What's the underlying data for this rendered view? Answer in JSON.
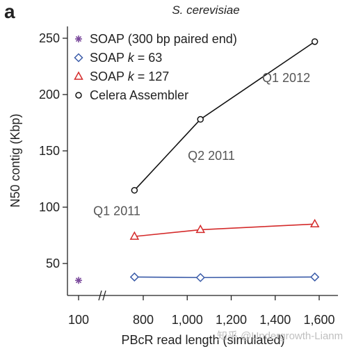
{
  "panel_letter": "a",
  "watermark": "知乎 @Undergrowth-Lianm",
  "colors": {
    "soap_300": "#7b4a9c",
    "soap_k63": "#3a5ba8",
    "soap_k127": "#d42a2a",
    "celera": "#111111",
    "annotation": "#555555"
  },
  "chart_data": {
    "type": "line",
    "title": "S. cerevisiae",
    "xlabel": "PBcR read length (simulated)",
    "ylabel": "N50 contig (Kbp)",
    "ylim": [
      25,
      260
    ],
    "xlim": [
      650,
      1650
    ],
    "x_break": true,
    "xticks": [
      {
        "value": 100,
        "label": "100",
        "broken_segment": true
      },
      {
        "value": 800,
        "label": "800"
      },
      {
        "value": 1000,
        "label": "1,000"
      },
      {
        "value": 1200,
        "label": "1,200"
      },
      {
        "value": 1400,
        "label": "1,400"
      },
      {
        "value": 1600,
        "label": "1,600"
      }
    ],
    "yticks": [
      {
        "value": 50,
        "label": "50"
      },
      {
        "value": 100,
        "label": "100"
      },
      {
        "value": 150,
        "label": "150"
      },
      {
        "value": 200,
        "label": "200"
      },
      {
        "value": 250,
        "label": "250"
      }
    ],
    "grid": false,
    "legend_position": "top-left",
    "series": [
      {
        "name": "SOAP (300 bp paired end)",
        "label_prefix": "SOAP (300 bp paired end)",
        "label_k": "",
        "label_suffix": "",
        "marker": "asterisk",
        "color_key": "soap_300",
        "connected": false,
        "points": [
          {
            "x": 100,
            "y": 35
          }
        ]
      },
      {
        "name": "SOAP k = 63",
        "label_prefix": "SOAP ",
        "label_k": "k",
        "label_suffix": " = 63",
        "marker": "diamond",
        "color_key": "soap_k63",
        "connected": true,
        "points": [
          {
            "x": 760,
            "y": 38
          },
          {
            "x": 1060,
            "y": 37.5
          },
          {
            "x": 1580,
            "y": 38
          }
        ]
      },
      {
        "name": "SOAP k = 127",
        "label_prefix": "SOAP ",
        "label_k": "k",
        "label_suffix": " = 127",
        "marker": "triangle",
        "color_key": "soap_k127",
        "connected": true,
        "points": [
          {
            "x": 760,
            "y": 74
          },
          {
            "x": 1060,
            "y": 80
          },
          {
            "x": 1580,
            "y": 85
          }
        ]
      },
      {
        "name": "Celera Assembler",
        "label_prefix": "Celera Assembler",
        "label_k": "",
        "label_suffix": "",
        "marker": "circle",
        "color_key": "celera",
        "connected": true,
        "points": [
          {
            "x": 760,
            "y": 115
          },
          {
            "x": 1060,
            "y": 178
          },
          {
            "x": 1580,
            "y": 247
          }
        ]
      }
    ],
    "annotations": [
      {
        "text": "Q1 2011",
        "x": 680,
        "y": 93
      },
      {
        "text": "Q2 2011",
        "x": 1110,
        "y": 142
      },
      {
        "text": "Q1 2012",
        "x": 1450,
        "y": 211
      }
    ]
  }
}
